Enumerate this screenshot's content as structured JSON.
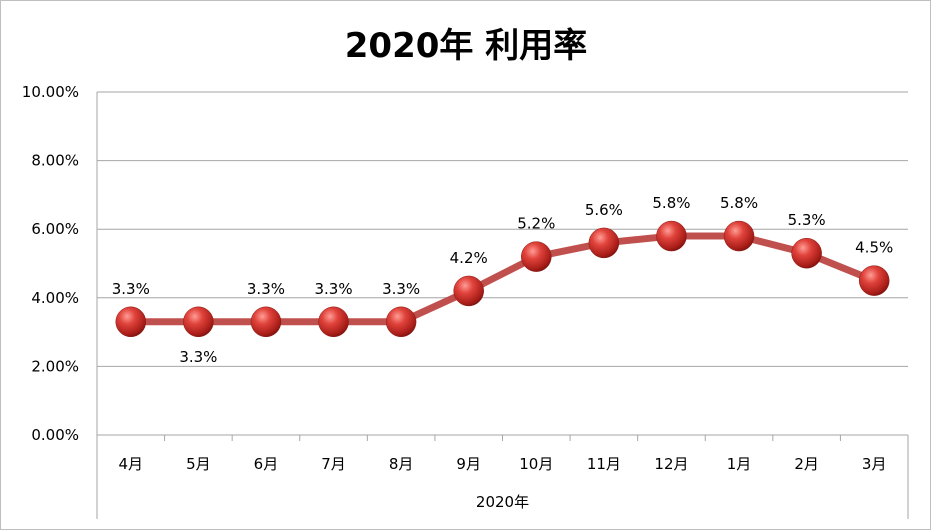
{
  "chart_data": {
    "type": "line",
    "title": "2020年 利用率",
    "categories": [
      "4月",
      "5月",
      "6月",
      "7月",
      "8月",
      "9月",
      "10月",
      "11月",
      "12月",
      "1月",
      "2月",
      "3月"
    ],
    "category_group": "2020年",
    "series": [
      {
        "values": [
          3.3,
          3.3,
          3.3,
          3.3,
          3.3,
          4.2,
          5.2,
          5.6,
          5.8,
          5.8,
          5.3,
          4.5
        ],
        "labels": [
          "3.3%",
          "3.3%",
          "3.3%",
          "3.3%",
          "3.3%",
          "4.2%",
          "5.2%",
          "5.6%",
          "5.8%",
          "5.8%",
          "5.3%",
          "4.5%"
        ],
        "line_color": "#c0504d",
        "marker_color": "#c0302a"
      }
    ],
    "ylim": [
      0,
      10
    ],
    "yticks": [
      "0.00%",
      "2.00%",
      "4.00%",
      "6.00%",
      "8.00%",
      "10.00%"
    ],
    "grid": true,
    "legend": "none"
  }
}
